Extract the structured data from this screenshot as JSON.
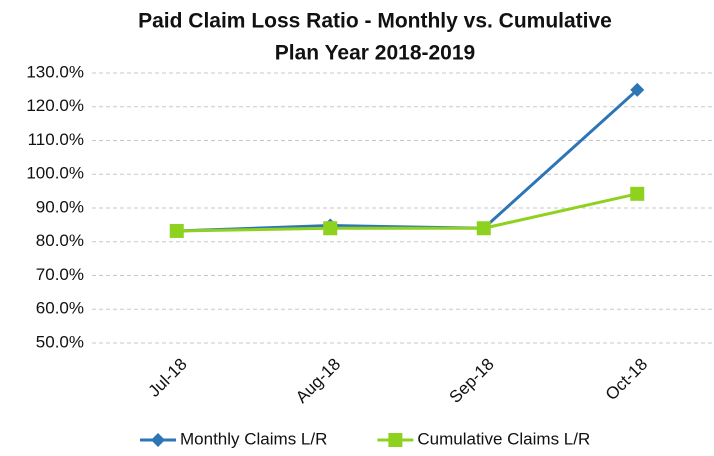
{
  "chart_data": {
    "type": "line",
    "title": "Paid Claim Loss Ratio - Monthly vs. Cumulative",
    "subtitle": "Plan Year 2018-2019",
    "categories": [
      "Jul-18",
      "Aug-18",
      "Sep-18",
      "Oct-18"
    ],
    "series": [
      {
        "name": "Monthly Claims L/R",
        "color": "#2e75b6",
        "marker": "diamond",
        "values": [
          83.2,
          84.8,
          84.0,
          125.0
        ]
      },
      {
        "name": "Cumulative Claims L/R",
        "color": "#8fd11f",
        "marker": "square",
        "values": [
          83.2,
          84.0,
          84.0,
          94.2
        ]
      }
    ],
    "ylim": [
      50,
      130
    ],
    "yticks": [
      {
        "value": 50,
        "label": "50.0%"
      },
      {
        "value": 60,
        "label": "60.0%"
      },
      {
        "value": 70,
        "label": "70.0%"
      },
      {
        "value": 80,
        "label": "80.0%"
      },
      {
        "value": 90,
        "label": "90.0%"
      },
      {
        "value": 100,
        "label": "100.0%"
      },
      {
        "value": 110,
        "label": "110.0%"
      },
      {
        "value": 120,
        "label": "120.0%"
      },
      {
        "value": 130,
        "label": "130.0%"
      }
    ],
    "grid": true,
    "legend": "bottom"
  }
}
